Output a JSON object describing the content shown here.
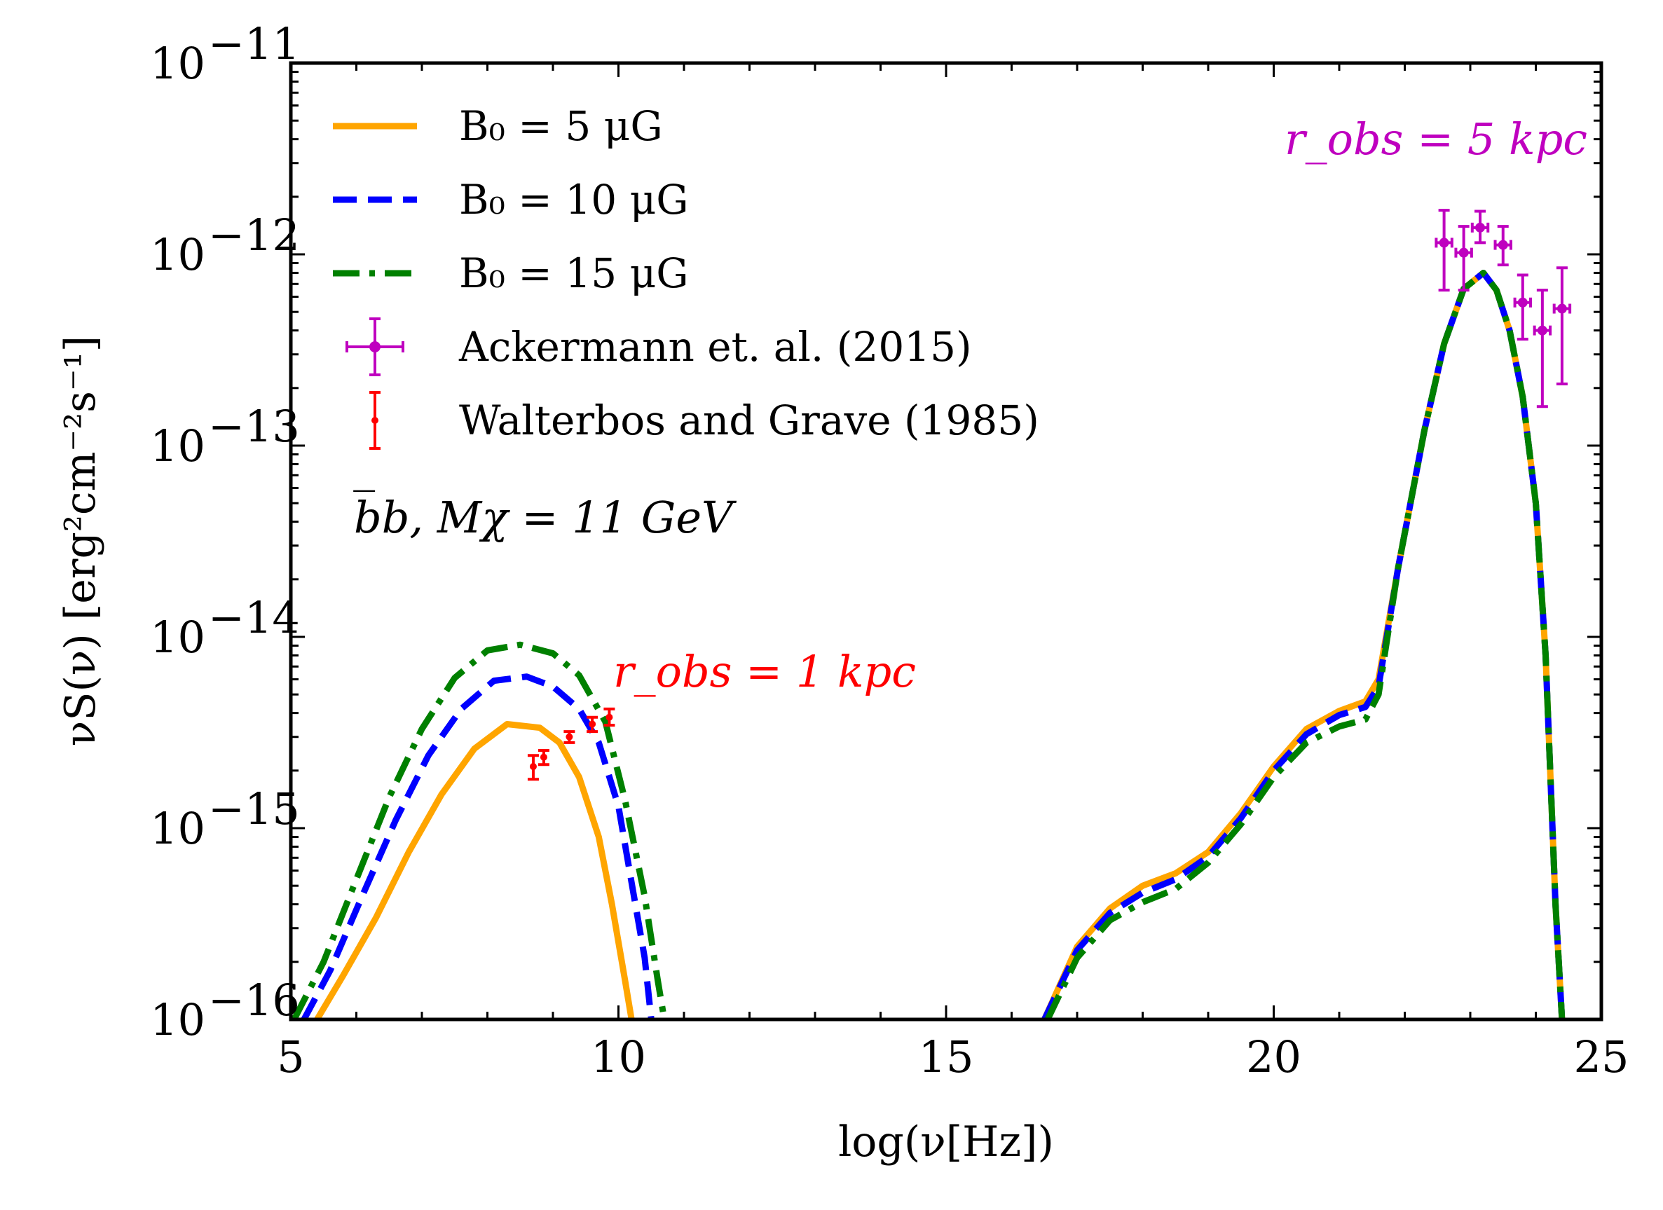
{
  "chart_data": {
    "type": "line",
    "title": "",
    "xlabel": "log(ν[Hz])",
    "ylabel": "νS(ν) [erg²cm⁻²s⁻¹]",
    "xscale": "linear",
    "yscale": "log",
    "xlim": [
      5,
      25
    ],
    "ylim": [
      1e-16,
      1e-11
    ],
    "xticks": [
      5,
      10,
      15,
      20,
      25
    ],
    "xtick_labels": [
      "5",
      "10",
      "15",
      "20",
      "25"
    ],
    "yticks": [
      1e-16,
      1e-15,
      1e-14,
      1e-13,
      1e-12,
      1e-11
    ],
    "ytick_exponents": [
      "−16",
      "−15",
      "−14",
      "−13",
      "−12",
      "−11"
    ],
    "ytick_base": "10",
    "grid": false,
    "legend_position": "upper-left",
    "series": [
      {
        "name": "B₀ = 5 μG",
        "color": "#FFA500",
        "linestyle": "solid",
        "segments": [
          {
            "x": [
              5.4,
              5.8,
              6.3,
              6.8,
              7.3,
              7.8,
              8.3,
              8.8,
              9.1,
              9.4,
              9.7,
              9.9,
              10.1,
              10.2
            ],
            "y": [
              1e-16,
              1.7e-16,
              3.4e-16,
              7.5e-16,
              1.5e-15,
              2.6e-15,
              3.5e-15,
              3.35e-15,
              2.8e-15,
              1.85e-15,
              9e-16,
              4e-16,
              1.6e-16,
              1e-16
            ]
          },
          {
            "x": [
              16.5,
              17.0,
              17.5,
              18.0,
              18.5,
              19.0,
              19.5,
              20.0,
              20.5,
              21.0,
              21.4,
              21.6,
              21.9,
              22.3,
              22.6,
              22.9,
              23.2,
              23.4,
              23.6,
              23.8,
              24.0,
              24.15,
              24.3,
              24.4
            ],
            "y": [
              1e-16,
              2.4e-16,
              3.8e-16,
              5e-16,
              5.8e-16,
              7.5e-16,
              1.2e-15,
              2.1e-15,
              3.3e-15,
              4.1e-15,
              4.6e-15,
              6e-15,
              2.3e-14,
              1.2e-13,
              3.4e-13,
              6.6e-13,
              8e-13,
              6.5e-13,
              4e-13,
              1.8e-13,
              5e-14,
              8e-15,
              4e-16,
              1e-16
            ]
          }
        ]
      },
      {
        "name": "B₀ = 10 μG",
        "color": "#0000FF",
        "linestyle": "dashed",
        "segments": [
          {
            "x": [
              5.2,
              5.6,
              6.1,
              6.6,
              7.1,
              7.6,
              8.1,
              8.6,
              9.0,
              9.4,
              9.7,
              10.0,
              10.2,
              10.4,
              10.5
            ],
            "y": [
              1e-16,
              1.8e-16,
              4.5e-16,
              1.1e-15,
              2.4e-15,
              4.2e-15,
              5.9e-15,
              6.2e-15,
              5.5e-15,
              4.2e-15,
              2.8e-15,
              1.3e-15,
              5.2e-16,
              2.1e-16,
              1e-16
            ]
          },
          {
            "x": [
              16.5,
              17.0,
              17.5,
              18.0,
              18.5,
              19.0,
              19.5,
              20.0,
              20.5,
              21.0,
              21.4,
              21.6,
              21.9,
              22.3,
              22.6,
              22.9,
              23.2,
              23.4,
              23.6,
              23.8,
              24.0,
              24.15,
              24.3,
              24.4
            ],
            "y": [
              1e-16,
              2.3e-16,
              3.6e-16,
              4.6e-16,
              5.4e-16,
              7.1e-16,
              1.13e-15,
              2e-15,
              3.1e-15,
              3.9e-15,
              4.3e-15,
              5.5e-15,
              2.3e-14,
              1.2e-13,
              3.4e-13,
              6.6e-13,
              8e-13,
              6.5e-13,
              4e-13,
              1.8e-13,
              5e-14,
              8e-15,
              4e-16,
              1e-16
            ]
          }
        ]
      },
      {
        "name": "B₀ = 15 μG",
        "color": "#008000",
        "linestyle": "dashdot",
        "segments": [
          {
            "x": [
              5.05,
              5.5,
              6.0,
              6.5,
              7.0,
              7.5,
              8.0,
              8.5,
              9.0,
              9.4,
              9.8,
              10.1,
              10.4,
              10.6,
              10.7
            ],
            "y": [
              1e-16,
              2e-16,
              5.4e-16,
              1.45e-15,
              3.3e-15,
              6.1e-15,
              8.5e-15,
              9.1e-15,
              8.2e-15,
              6.3e-15,
              3.6e-15,
              1.4e-15,
              4.4e-16,
              1.6e-16,
              1e-16
            ]
          },
          {
            "x": [
              16.55,
              17.0,
              17.5,
              18.0,
              18.5,
              19.0,
              19.5,
              20.0,
              20.5,
              21.0,
              21.4,
              21.6,
              21.9,
              22.3,
              22.6,
              22.9,
              23.2,
              23.4,
              23.6,
              23.8,
              24.0,
              24.15,
              24.3,
              24.4
            ],
            "y": [
              1e-16,
              2.1e-16,
              3.3e-16,
              4.1e-16,
              4.8e-16,
              6.6e-16,
              1.05e-15,
              1.85e-15,
              2.8e-15,
              3.4e-15,
              3.7e-15,
              5e-15,
              2.3e-14,
              1.2e-13,
              3.4e-13,
              6.6e-13,
              8e-13,
              6.5e-13,
              4e-13,
              1.8e-13,
              5e-14,
              8e-15,
              4e-16,
              1e-16
            ]
          }
        ]
      }
    ],
    "data_points": [
      {
        "name": "Ackermann et. al. (2015)",
        "color": "#BF00BF",
        "marker": "o",
        "points": [
          {
            "x": 22.6,
            "y": 1.15e-12,
            "yerr_low": 6.5e-13,
            "yerr_high": 1.7e-12,
            "xerr": 0.12
          },
          {
            "x": 22.9,
            "y": 1.02e-12,
            "yerr_low": 6.5e-13,
            "yerr_high": 1.4e-12,
            "xerr": 0.12
          },
          {
            "x": 23.15,
            "y": 1.38e-12,
            "yerr_low": 1.15e-12,
            "yerr_high": 1.68e-12,
            "xerr": 0.12
          },
          {
            "x": 23.5,
            "y": 1.12e-12,
            "yerr_low": 8.8e-13,
            "yerr_high": 1.4e-12,
            "xerr": 0.12
          },
          {
            "x": 23.8,
            "y": 5.6e-13,
            "yerr_low": 3.6e-13,
            "yerr_high": 7.8e-13,
            "xerr": 0.12
          },
          {
            "x": 24.1,
            "y": 4e-13,
            "yerr_low": 1.6e-13,
            "yerr_high": 6.5e-13,
            "xerr": 0.12
          },
          {
            "x": 24.4,
            "y": 5.2e-13,
            "yerr_low": 2.1e-13,
            "yerr_high": 8.5e-13,
            "xerr": 0.12
          }
        ]
      },
      {
        "name": "Walterbos and Grave (1985)",
        "color": "#FF0000",
        "marker": ".",
        "points": [
          {
            "x": 8.7,
            "y": 2.1e-15,
            "yerr_low": 1.8e-15,
            "yerr_high": 2.4e-15
          },
          {
            "x": 8.86,
            "y": 2.35e-15,
            "yerr_low": 2.15e-15,
            "yerr_high": 2.55e-15
          },
          {
            "x": 9.25,
            "y": 3e-15,
            "yerr_low": 2.8e-15,
            "yerr_high": 3.2e-15
          },
          {
            "x": 9.6,
            "y": 3.5e-15,
            "yerr_low": 3.2e-15,
            "yerr_high": 3.8e-15
          },
          {
            "x": 9.86,
            "y": 3.8e-15,
            "yerr_low": 3.45e-15,
            "yerr_high": 4.2e-15
          }
        ]
      }
    ],
    "annotations": [
      {
        "text": "b̅b, Mχ = 11 GeV",
        "color": "#000000",
        "position": "upper-left"
      },
      {
        "text": "r_obs = 1 kpc",
        "color": "#FF0000",
        "position": "center-left"
      },
      {
        "text": "r_obs = 5 kpc",
        "color": "#BF00BF",
        "position": "upper-right"
      }
    ]
  }
}
